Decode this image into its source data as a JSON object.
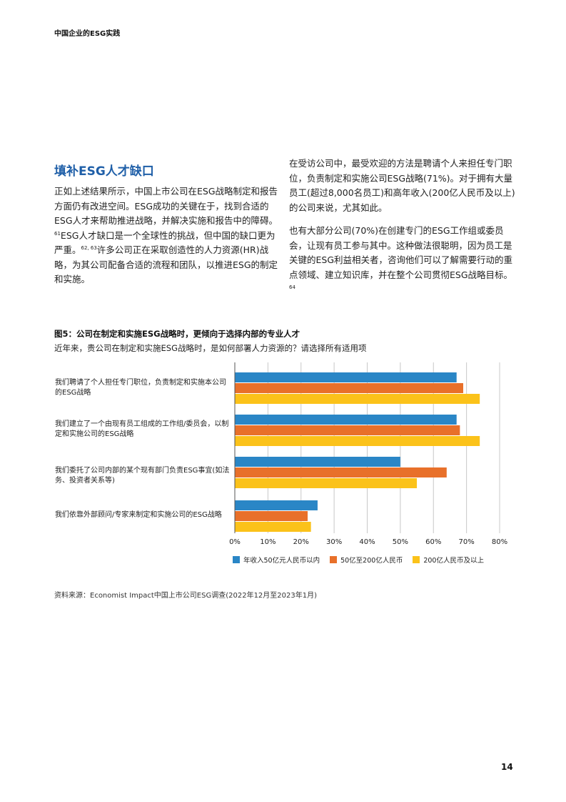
{
  "header": {
    "title": "中国企业的ESG实践"
  },
  "section": {
    "title": "填补ESG人才缺口"
  },
  "left_column": {
    "p1_a": "正如上述结果所示，中国上市公司在ESG战略制定和报告方面仍有改进空间。ESG成功的关键在于，找到合适的ESG人才来帮助推进战略，并解决实施和报告中的障碍。",
    "p1_ref1": "61",
    "p1_b": "ESG人才缺口是一个全球性的挑战，但中国的缺口更为严重。",
    "p1_ref2": "62, 63",
    "p1_c": "许多公司正在采取创造性的人力资源(HR)战略，为其公司配备合适的流程和团队，以推进ESG的制定和实施。"
  },
  "right_column": {
    "p1": "在受访公司中，最受欢迎的方法是聘请个人来担任专门职位，负责制定和实施公司ESG战略(71%)。对于拥有大量员工(超过8,000名员工)和高年收入(200亿人民币及以上)的公司来说，尤其如此。",
    "p2_a": "也有大部分公司(70%)在创建专门的ESG工作组或委员会，让现有员工参与其中。这种做法很聪明，因为员工是关键的ESG利益相关者，咨询他们可以了解需要行动的重点领域、建立知识库，并在整个公司贯彻ESG战略目标。",
    "p2_ref": "64"
  },
  "figure": {
    "title": "图5：公司在制定和实施ESG战略时，更倾向于选择内部的专业人才",
    "subtitle": "近年来，贵公司在制定和实施ESG战略时，是如何部署人力资源的？请选择所有适用项"
  },
  "chart_data": {
    "type": "bar",
    "orientation": "horizontal",
    "categories": [
      "我们聘请了个人担任专门职位，负责制定和实施本公司的ESG战略",
      "我们建立了一个由现有员工组成的工作组/委员会，以制定和实施公司的ESG战略",
      "我们委托了公司内部的某个现有部门负责ESG事宜(如法务、投资者关系等)",
      "我们依靠外部顾问/专家来制定和实施公司的ESG战略"
    ],
    "series": [
      {
        "name": "年收入50亿元人民币以内",
        "color": "#2a86c6",
        "values": [
          67,
          67,
          50,
          25
        ]
      },
      {
        "name": "50亿至200亿人民币",
        "color": "#e8702a",
        "values": [
          69,
          68,
          64,
          22
        ]
      },
      {
        "name": "200亿人民币及以上",
        "color": "#fbc21a",
        "values": [
          74,
          74,
          55,
          23
        ]
      }
    ],
    "xlim": [
      0,
      80
    ],
    "xticks": [
      "0%",
      "10%",
      "20%",
      "30%",
      "40%",
      "50%",
      "60%",
      "70%",
      "80%"
    ],
    "grid": true,
    "legend_position": "bottom"
  },
  "source": {
    "text": "资料来源：Economist Impact中国上市公司ESG调查(2022年12月至2023年1月)"
  },
  "page": {
    "number": "14"
  }
}
